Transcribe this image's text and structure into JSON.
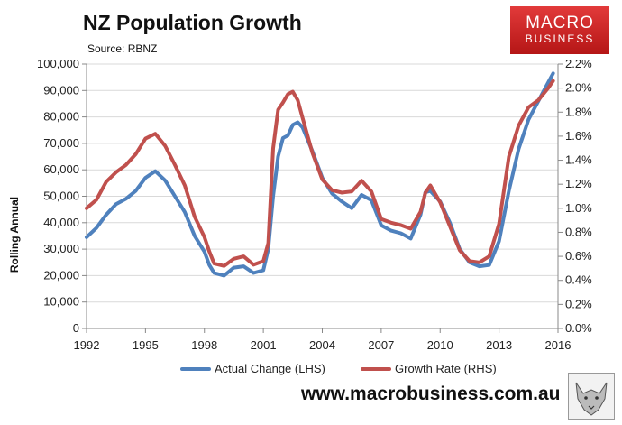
{
  "header": {
    "title": "NZ Population Growth",
    "source": "Source: RBNZ"
  },
  "logo": {
    "line1": "MACRO",
    "line2": "BUSINESS"
  },
  "footer": {
    "website": "www.macrobusiness.com.au"
  },
  "colors": {
    "actual": "#4f81bd",
    "growth": "#c0504d",
    "logo_red": "#d42a2a"
  },
  "chart_data": {
    "type": "line",
    "title": "NZ Population Growth",
    "ylabel": "Rolling Annual",
    "xlabel": "",
    "x_tick_labels": [
      "1992",
      "1995",
      "1998",
      "2001",
      "2004",
      "2007",
      "2010",
      "2013",
      "2016"
    ],
    "y_left_tick_labels": [
      "0",
      "10,000",
      "20,000",
      "30,000",
      "40,000",
      "50,000",
      "60,000",
      "70,000",
      "80,000",
      "90,000",
      "100,000"
    ],
    "y_right_tick_labels": [
      "0.0%",
      "0.2%",
      "0.4%",
      "0.6%",
      "0.8%",
      "1.0%",
      "1.2%",
      "1.4%",
      "1.6%",
      "1.8%",
      "2.0%",
      "2.2%"
    ],
    "xlim": [
      1992,
      2016
    ],
    "ylim_left": [
      0,
      100000
    ],
    "ylim_right": [
      0,
      2.2
    ],
    "grid": true,
    "legend_position": "bottom",
    "series": [
      {
        "name": "Actual Change (LHS)",
        "axis": "left",
        "x": [
          1992.0,
          1992.5,
          1993.0,
          1993.5,
          1994.0,
          1994.5,
          1995.0,
          1995.5,
          1996.0,
          1996.5,
          1997.0,
          1997.5,
          1998.0,
          1998.25,
          1998.5,
          1999.0,
          1999.5,
          2000.0,
          2000.5,
          2001.0,
          2001.25,
          2001.5,
          2001.75,
          2002.0,
          2002.25,
          2002.5,
          2002.75,
          2003.0,
          2003.5,
          2004.0,
          2004.5,
          2005.0,
          2005.5,
          2006.0,
          2006.5,
          2007.0,
          2007.5,
          2008.0,
          2008.5,
          2009.0,
          2009.25,
          2009.5,
          2010.0,
          2010.5,
          2011.0,
          2011.5,
          2012.0,
          2012.5,
          2013.0,
          2013.5,
          2014.0,
          2014.5,
          2015.0,
          2015.5,
          2015.75
        ],
        "values": [
          34500,
          38000,
          43000,
          47000,
          49000,
          52000,
          57000,
          59500,
          56000,
          50000,
          44000,
          35000,
          29000,
          24000,
          21000,
          20000,
          23000,
          23500,
          21000,
          22000,
          30000,
          50000,
          65000,
          72000,
          73000,
          77000,
          78000,
          76000,
          67000,
          57000,
          51000,
          48000,
          45500,
          50500,
          48500,
          39000,
          37000,
          36000,
          34000,
          43000,
          51500,
          52000,
          48000,
          40000,
          30000,
          25000,
          23500,
          24000,
          33000,
          52000,
          68000,
          79000,
          86000,
          93000,
          96500
        ]
      },
      {
        "name": "Growth Rate (RHS)",
        "axis": "right",
        "x": [
          1992.0,
          1992.5,
          1993.0,
          1993.5,
          1994.0,
          1994.5,
          1995.0,
          1995.5,
          1996.0,
          1996.5,
          1997.0,
          1997.5,
          1998.0,
          1998.25,
          1998.5,
          1999.0,
          1999.5,
          2000.0,
          2000.5,
          2001.0,
          2001.25,
          2001.5,
          2001.75,
          2002.0,
          2002.25,
          2002.5,
          2002.75,
          2003.0,
          2003.5,
          2004.0,
          2004.5,
          2005.0,
          2005.5,
          2006.0,
          2006.5,
          2007.0,
          2007.5,
          2008.0,
          2008.5,
          2009.0,
          2009.25,
          2009.5,
          2010.0,
          2010.5,
          2011.0,
          2011.5,
          2012.0,
          2012.5,
          2013.0,
          2013.5,
          2014.0,
          2014.5,
          2015.0,
          2015.5,
          2015.75
        ],
        "values": [
          1.0,
          1.07,
          1.22,
          1.3,
          1.36,
          1.45,
          1.58,
          1.62,
          1.52,
          1.36,
          1.19,
          0.93,
          0.76,
          0.64,
          0.54,
          0.52,
          0.58,
          0.6,
          0.53,
          0.56,
          0.71,
          1.5,
          1.82,
          1.88,
          1.95,
          1.97,
          1.9,
          1.75,
          1.46,
          1.24,
          1.15,
          1.13,
          1.14,
          1.23,
          1.14,
          0.91,
          0.88,
          0.86,
          0.83,
          0.97,
          1.13,
          1.19,
          1.05,
          0.85,
          0.65,
          0.56,
          0.55,
          0.6,
          0.87,
          1.43,
          1.69,
          1.84,
          1.9,
          2.0,
          2.06
        ]
      }
    ]
  }
}
